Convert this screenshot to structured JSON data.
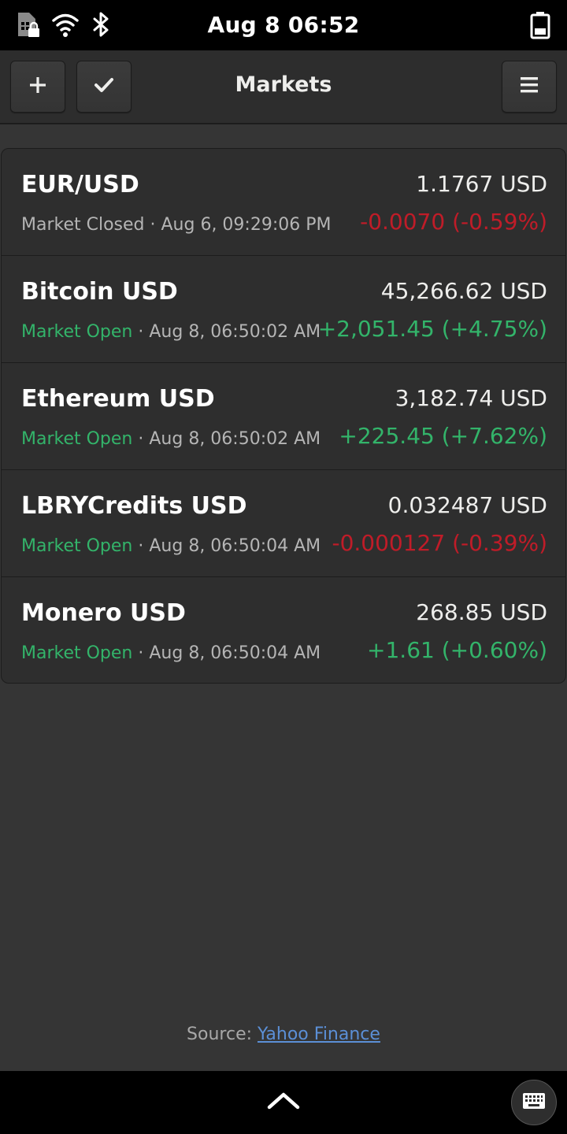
{
  "status_bar": {
    "clock": "Aug 8  06:52",
    "icons": [
      "sim-card-locked-icon",
      "wifi-icon",
      "bluetooth-icon",
      "battery-icon"
    ]
  },
  "header": {
    "title": "Markets",
    "buttons": [
      "add-icon",
      "check-icon",
      "menu-icon"
    ]
  },
  "colors": {
    "positive": "#33b46a",
    "negative": "#c01c28",
    "background": "#353535",
    "card": "#2e2e2e",
    "link": "#5b8fd6"
  },
  "markets": [
    {
      "name": "EUR/USD",
      "state": "Market Closed",
      "state_color": "#b5b5b5",
      "timestamp": " · Aug  6, 09:29:06 PM",
      "price": "1.1767 USD",
      "change": "-0.0070 (-0.59%)",
      "change_color": "#c01c28"
    },
    {
      "name": "Bitcoin USD",
      "state": "Market Open",
      "state_color": "#33b46a",
      "timestamp": " · Aug  8, 06:50:02 AM",
      "price": "45,266.62 USD",
      "change": "+2,051.45 (+4.75%)",
      "change_color": "#33b46a"
    },
    {
      "name": "Ethereum USD",
      "state": "Market Open",
      "state_color": "#33b46a",
      "timestamp": " · Aug  8, 06:50:02 AM",
      "price": "3,182.74 USD",
      "change": "+225.45 (+7.62%)",
      "change_color": "#33b46a"
    },
    {
      "name": "LBRYCredits USD",
      "state": "Market Open",
      "state_color": "#33b46a",
      "timestamp": " · Aug  8, 06:50:04 AM",
      "price": "0.032487 USD",
      "change": "-0.000127 (-0.39%)",
      "change_color": "#c01c28"
    },
    {
      "name": "Monero USD",
      "state": "Market Open",
      "state_color": "#33b46a",
      "timestamp": " · Aug  8, 06:50:04 AM",
      "price": "268.85 USD",
      "change": "+1.61 (+0.60%)",
      "change_color": "#33b46a"
    }
  ],
  "footer": {
    "source_label": "Source: ",
    "source_link": "Yahoo Finance"
  },
  "bottom_bar": {
    "icons": [
      "chevron-up-icon",
      "keyboard-icon"
    ]
  }
}
